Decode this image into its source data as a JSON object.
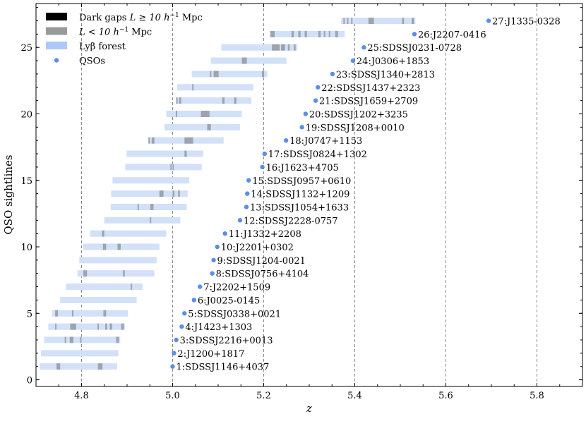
{
  "chart_data": {
    "type": "bar",
    "xlabel": "z",
    "ylabel": "QSO sightlines",
    "xlim": [
      4.7,
      5.9
    ],
    "ylim": [
      -0.5,
      28.3
    ],
    "xticks": [
      4.8,
      5.0,
      5.2,
      5.4,
      5.6,
      5.8
    ],
    "xtick_labels": [
      "4.8",
      "5.0",
      "5.2",
      "5.4",
      "5.6",
      "5.8"
    ],
    "yticks": [
      0,
      5,
      10,
      15,
      20,
      25
    ],
    "ytick_labels": [
      "0",
      "5",
      "10",
      "15",
      "20",
      "25"
    ],
    "grid": "dashed vertical lines at major x ticks",
    "legend_placement": "top-left",
    "legend": [
      {
        "label": "Dark gaps",
        "math": "L ≥ 10 h",
        "sup": "−1",
        "unit": " Mpc",
        "color": "#000000",
        "kind": "box"
      },
      {
        "label": "",
        "math": "L < 10 h",
        "sup": "−1",
        "unit": " Mpc",
        "color": "#999999",
        "kind": "box"
      },
      {
        "label": "Lyβ forest",
        "math": "",
        "sup": "",
        "unit": "",
        "color": "#aec8f5",
        "kind": "box"
      },
      {
        "label": "QSOs",
        "math": "",
        "sup": "",
        "unit": "",
        "color": "#5b8ee6",
        "kind": "dot"
      }
    ],
    "colors": {
      "forest": "#d2e0f8",
      "gap": "#9ea4ae",
      "qso": "#5b8ee6",
      "grid": "#888888"
    },
    "sightlines": [
      {
        "id": 1,
        "name": "1:SDSSJ1146+4037",
        "z_qso": 5.0,
        "forest": [
          4.708,
          4.878
        ],
        "gaps": [
          [
            4.745,
            4.753
          ],
          [
            4.836,
            4.846
          ]
        ]
      },
      {
        "id": 2,
        "name": "2:J1200+1817",
        "z_qso": 5.003,
        "forest": [
          4.711,
          4.881
        ],
        "gaps": []
      },
      {
        "id": 3,
        "name": "3:SDSSJ2216+0013",
        "z_qso": 5.008,
        "forest": [
          4.718,
          4.885
        ],
        "gaps": [
          [
            4.763,
            4.766
          ],
          [
            4.774,
            4.782
          ],
          [
            4.797,
            4.8
          ],
          [
            4.876,
            4.882
          ]
        ]
      },
      {
        "id": 4,
        "name": "4:J1423+1303",
        "z_qso": 5.02,
        "forest": [
          4.727,
          4.895
        ],
        "gaps": [
          [
            4.742,
            4.745
          ],
          [
            4.775,
            4.788
          ],
          [
            4.835,
            4.838
          ],
          [
            4.852,
            4.856
          ],
          [
            4.862,
            4.867
          ],
          [
            4.887,
            4.893
          ]
        ]
      },
      {
        "id": 5,
        "name": "5:SDSSJ0338+0021",
        "z_qso": 5.026,
        "forest": [
          4.735,
          4.902
        ],
        "gaps": [
          [
            4.742,
            4.748
          ],
          [
            4.779,
            4.782
          ],
          [
            4.848,
            4.854
          ]
        ]
      },
      {
        "id": 6,
        "name": "6:J0025-0145",
        "z_qso": 5.047,
        "forest": [
          4.753,
          4.921
        ],
        "gaps": []
      },
      {
        "id": 7,
        "name": "7:J2202+1509",
        "z_qso": 5.06,
        "forest": [
          4.766,
          4.934
        ],
        "gaps": [
          [
            4.908,
            4.911
          ]
        ]
      },
      {
        "id": 8,
        "name": "8:SDSSJ0756+4104",
        "z_qso": 5.087,
        "forest": [
          4.791,
          4.96
        ],
        "gaps": [
          [
            4.804,
            4.812
          ],
          [
            4.891,
            4.895
          ]
        ]
      },
      {
        "id": 9,
        "name": "9:SDSSJ1204-0021",
        "z_qso": 5.09,
        "forest": [
          4.795,
          4.965
        ],
        "gaps": []
      },
      {
        "id": 10,
        "name": "10:J2201+0302",
        "z_qso": 5.098,
        "forest": [
          4.803,
          4.971
        ],
        "gaps": [
          [
            4.847,
            4.854
          ],
          [
            4.879,
            4.886
          ]
        ]
      },
      {
        "id": 11,
        "name": "11:J1332+2208",
        "z_qso": 5.115,
        "forest": [
          4.819,
          4.986
        ],
        "gaps": [
          [
            4.845,
            4.85
          ]
        ]
      },
      {
        "id": 12,
        "name": "12:SDSSJ2228-0757",
        "z_qso": 5.148,
        "forest": [
          4.85,
          5.017
        ],
        "gaps": [
          [
            4.95,
            4.953
          ]
        ]
      },
      {
        "id": 13,
        "name": "13:SDSSJ1054+1633",
        "z_qso": 5.162,
        "forest": [
          4.864,
          5.031
        ],
        "gaps": [
          [
            4.923,
            4.926
          ],
          [
            4.951,
            4.958
          ]
        ]
      },
      {
        "id": 14,
        "name": "14:SDSSJ1132+1209",
        "z_qso": 5.164,
        "forest": [
          4.865,
          5.033
        ],
        "gaps": [
          [
            4.971,
            4.98
          ],
          [
            5.0,
            5.004
          ],
          [
            5.012,
            5.016
          ]
        ]
      },
      {
        "id": 15,
        "name": "15:SDSSJ0957+0610",
        "z_qso": 5.167,
        "forest": [
          4.868,
          5.036
        ],
        "gaps": []
      },
      {
        "id": 16,
        "name": "16:J1623+4705",
        "z_qso": 5.197,
        "forest": [
          4.896,
          5.064
        ],
        "gaps": [
          [
            4.995,
            4.998
          ],
          [
            5.0,
            5.002
          ]
        ]
      },
      {
        "id": 17,
        "name": "17:SDSSJ0824+1302",
        "z_qso": 5.202,
        "forest": [
          4.899,
          5.067
        ],
        "gaps": [
          [
            5.026,
            5.031
          ]
        ]
      },
      {
        "id": 18,
        "name": "18:J0747+1153",
        "z_qso": 5.249,
        "forest": [
          4.946,
          5.112
        ],
        "gaps": [
          [
            4.947,
            4.95
          ],
          [
            4.954,
            4.96
          ],
          [
            5.026,
            5.045
          ]
        ]
      },
      {
        "id": 19,
        "name": "19:SDSSJ1208+0010",
        "z_qso": 5.284,
        "forest": [
          4.982,
          5.148
        ],
        "gaps": [
          [
            5.076,
            5.084
          ]
        ]
      },
      {
        "id": 20,
        "name": "20:SDSSJ1202+3235",
        "z_qso": 5.292,
        "forest": [
          4.986,
          5.152
        ],
        "gaps": [
          [
            5.007,
            5.01
          ],
          [
            5.062,
            5.081
          ]
        ]
      },
      {
        "id": 21,
        "name": "21:SDSSJ1659+2709",
        "z_qso": 5.314,
        "forest": [
          5.007,
          5.173
        ],
        "gaps": [
          [
            5.008,
            5.011
          ],
          [
            5.014,
            5.019
          ],
          [
            5.109,
            5.114
          ],
          [
            5.135,
            5.14
          ]
        ]
      },
      {
        "id": 22,
        "name": "22:SDSSJ1437+2323",
        "z_qso": 5.319,
        "forest": [
          5.01,
          5.177
        ],
        "gaps": [
          [
            5.043,
            5.046
          ]
        ]
      },
      {
        "id": 23,
        "name": "23:SDSSJ1340+2813",
        "z_qso": 5.351,
        "forest": [
          5.042,
          5.208
        ],
        "gaps": [
          [
            5.082,
            5.085
          ],
          [
            5.09,
            5.101
          ],
          [
            5.196,
            5.201
          ]
        ]
      },
      {
        "id": 24,
        "name": "24:J0306+1853",
        "z_qso": 5.396,
        "forest": [
          5.084,
          5.25
        ],
        "gaps": [
          [
            5.152,
            5.163
          ]
        ]
      },
      {
        "id": 25,
        "name": "25:SDSSJ0231-0728",
        "z_qso": 5.42,
        "forest": [
          5.107,
          5.274
        ],
        "gaps": [
          [
            5.218,
            5.235
          ],
          [
            5.238,
            5.247
          ],
          [
            5.253,
            5.257
          ],
          [
            5.266,
            5.27
          ]
        ]
      },
      {
        "id": 26,
        "name": "26:J2207-0416",
        "z_qso": 5.531,
        "forest": [
          5.213,
          5.378
        ],
        "gaps": [
          [
            5.215,
            5.224
          ],
          [
            5.261,
            5.266
          ],
          [
            5.276,
            5.281
          ],
          [
            5.29,
            5.295
          ],
          [
            5.32,
            5.325
          ],
          [
            5.332,
            5.335
          ],
          [
            5.343,
            5.346
          ],
          [
            5.357,
            5.363
          ]
        ]
      },
      {
        "id": 27,
        "name": "27:J1335-0328",
        "z_qso": 5.694,
        "forest": [
          5.37,
          5.533
        ],
        "gaps": [
          [
            5.375,
            5.378
          ],
          [
            5.383,
            5.386
          ],
          [
            5.392,
            5.395
          ],
          [
            5.43,
            5.442
          ],
          [
            5.504,
            5.508
          ],
          [
            5.525,
            5.53
          ]
        ]
      }
    ]
  }
}
